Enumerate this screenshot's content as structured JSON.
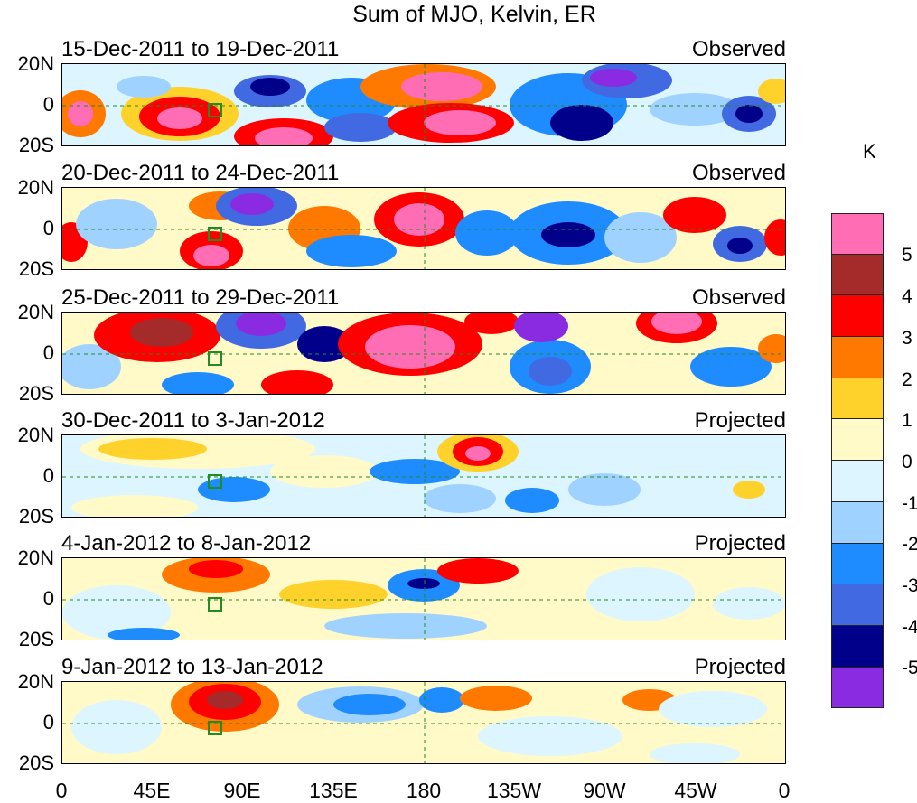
{
  "title": "Sum of MJO, Kelvin, ER",
  "units": "K",
  "panels": [
    {
      "dates": "15-Dec-2011 to 19-Dec-2011",
      "status": "Observed"
    },
    {
      "dates": "20-Dec-2011 to 24-Dec-2011",
      "status": "Observed"
    },
    {
      "dates": "25-Dec-2011 to 29-Dec-2011",
      "status": "Observed"
    },
    {
      "dates": "30-Dec-2011 to 3-Jan-2012",
      "status": "Projected"
    },
    {
      "dates": "4-Jan-2012 to 8-Jan-2012",
      "status": "Projected"
    },
    {
      "dates": "9-Jan-2012 to 13-Jan-2012",
      "status": "Projected"
    }
  ],
  "lat_labels": [
    "20N",
    "0",
    "20S"
  ],
  "lon_labels": [
    "0",
    "45E",
    "90E",
    "135E",
    "180",
    "135W",
    "90W",
    "45W",
    "0"
  ],
  "colorbar": {
    "colors": [
      "#ff6eb4",
      "#a52a2a",
      "#ff0000",
      "#ff7800",
      "#ffd22b",
      "#fffac8",
      "#dcf5ff",
      "#a0d2ff",
      "#1e8cff",
      "#4169e1",
      "#00008b",
      "#8a2be2"
    ],
    "labels": [
      "5",
      "4",
      "3",
      "2",
      "1",
      "0",
      "-1",
      "-2",
      "-3",
      "-4",
      "-5"
    ]
  }
}
